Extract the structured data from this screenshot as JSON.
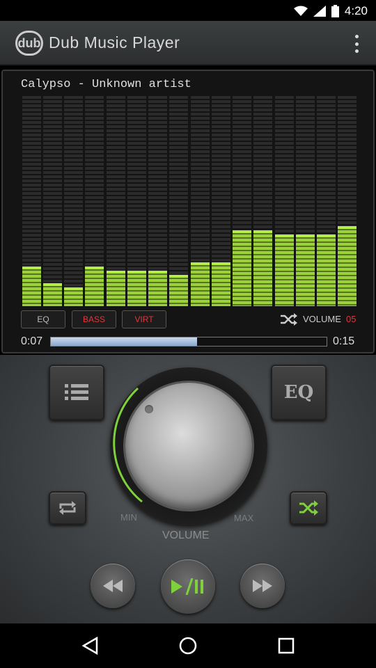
{
  "status": {
    "time": "4:20"
  },
  "app": {
    "title": "Dub Music Player",
    "logo_text": "dub"
  },
  "track": {
    "title": "Calypso - Unknown artist"
  },
  "equalizer": {
    "band_levels": [
      0.19,
      0.11,
      0.09,
      0.19,
      0.17,
      0.17,
      0.17,
      0.15,
      0.21,
      0.21,
      0.36,
      0.36,
      0.34,
      0.34,
      0.34,
      0.38
    ]
  },
  "effects": {
    "eq_label": "EQ",
    "bass_label": "BASS",
    "virt_label": "VIRT"
  },
  "volume_display": {
    "label": "VOLUME",
    "value": "05"
  },
  "playback": {
    "elapsed": "0:07",
    "total": "0:15",
    "progress": 0.53
  },
  "controls": {
    "knob_min_label": "MIN",
    "knob_max_label": "MAX",
    "knob_volume_label": "VOLUME",
    "eq_button_label": "EQ"
  },
  "colors": {
    "accent_green": "#9bd23a",
    "accent_red": "#e0373c",
    "knob_arc": "#7ed13a"
  },
  "icons": [
    "dub-logo-icon",
    "overflow-menu-icon",
    "shuffle-icon",
    "playlist-icon",
    "eq-icon",
    "repeat-icon",
    "previous-icon",
    "play-pause-icon",
    "next-icon",
    "back-icon",
    "home-icon",
    "recents-icon"
  ]
}
